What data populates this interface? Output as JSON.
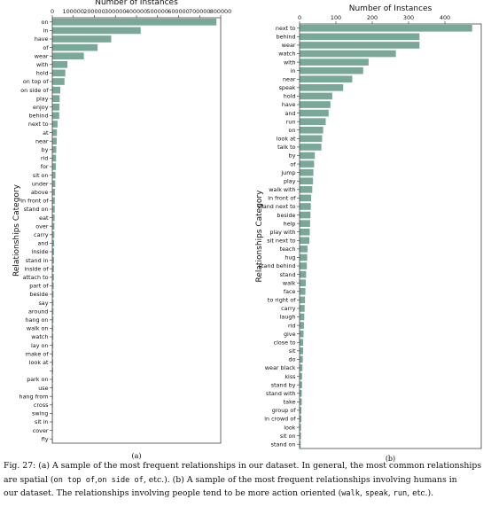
{
  "chart_data": [
    {
      "type": "bar",
      "orientation": "horizontal",
      "title": "",
      "xlabel": "Number of Instances",
      "ylabel": "Relationships Category",
      "xlim": [
        0,
        800000
      ],
      "xticks": [
        0,
        100000,
        200000,
        300000,
        400000,
        500000,
        600000,
        700000,
        800000
      ],
      "xtick_labels": [
        "0",
        "100000",
        "200000",
        "300000",
        "400000",
        "500000",
        "600000",
        "700000",
        "800000"
      ],
      "bar_color": "#7aa898",
      "grid": false,
      "subfigure_label": "(a)",
      "categories": [
        "on",
        "in",
        "have",
        "of",
        "wear",
        "with",
        "hold",
        "on top of",
        "on side of",
        "play",
        "enjoy",
        "behind",
        "next to",
        "at",
        "near",
        "by",
        "rid",
        "for",
        "sit on",
        "under",
        "above",
        "in front of",
        "stand on",
        "eat",
        "over",
        "carry",
        "and",
        "inside",
        "stand in",
        "inside of",
        "attach to",
        "part of",
        "beside",
        "say",
        "around",
        "hang on",
        "walk on",
        "watch",
        "lay on",
        "make of",
        "look at",
        "",
        "park on",
        "use",
        "hang from",
        "cross",
        "swing",
        "sit in",
        "cover",
        "fly"
      ],
      "values": [
        780000,
        420000,
        280000,
        215000,
        150000,
        72000,
        62000,
        58000,
        38000,
        35000,
        34000,
        33000,
        25000,
        22000,
        21000,
        19000,
        18000,
        17000,
        15000,
        14000,
        12500,
        12000,
        11500,
        11000,
        10000,
        9500,
        9000,
        8500,
        8000,
        7800,
        7500,
        7000,
        6500,
        6000,
        5800,
        5500,
        5200,
        5000,
        4800,
        4500,
        4300,
        4000,
        3800,
        3500,
        3300,
        3100,
        2900,
        2700,
        2500,
        2300
      ]
    },
    {
      "type": "bar",
      "orientation": "horizontal",
      "title": "",
      "xlabel": "Number of Instances",
      "ylabel": "Relationships Category",
      "xlim": [
        0,
        500
      ],
      "xticks": [
        0,
        100,
        200,
        300,
        400
      ],
      "xtick_labels": [
        "0",
        "100",
        "200",
        "300",
        "400"
      ],
      "bar_color": "#7aa898",
      "grid": false,
      "subfigure_label": "(b)",
      "categories": [
        "next to",
        "behind",
        "wear",
        "watch",
        "with",
        "in",
        "near",
        "speak",
        "hold",
        "have",
        "and",
        "run",
        "on",
        "look at",
        "talk to",
        "by",
        "of",
        "jump",
        "play",
        "walk with",
        "in front of",
        "stand next to",
        "beside",
        "help",
        "play with",
        "sit next to",
        "teach",
        "hug",
        "stand behind",
        "stand",
        "walk",
        "face",
        "to right of",
        "carry",
        "laugh",
        "rid",
        "give",
        "close to",
        "sit",
        "do",
        "wear black",
        "kiss",
        "stand by",
        "stand with",
        "take",
        "group of",
        "in crowd of",
        "look",
        "sit on",
        "stand on"
      ],
      "values": [
        475,
        330,
        330,
        265,
        190,
        175,
        145,
        120,
        90,
        85,
        80,
        72,
        65,
        62,
        60,
        42,
        40,
        38,
        37,
        35,
        32,
        31,
        30,
        29,
        28,
        27,
        22,
        21,
        20,
        18,
        17,
        16,
        15,
        14,
        13,
        12,
        11,
        10,
        10,
        9,
        8,
        7,
        7,
        6,
        6,
        5,
        5,
        4,
        4,
        3
      ]
    }
  ],
  "caption": {
    "line1": "Fig. 27: (a) A sample of the most frequent relationships in our dataset. In general, the most common relationships",
    "line2_pre": "are spatial (",
    "line2_code1": "on top of",
    "line2_sep": ",",
    "line2_code2": "on side of",
    "line2_mid": ", etc.). (b) A sample of the most frequent relationships involving humans in",
    "line3_pre": "our dataset. The relationships involving people tend to be more action oriented (",
    "line3_code1": "walk",
    "line3_sep1": ", ",
    "line3_code2": "speak",
    "line3_sep2": ", ",
    "line3_code3": "run",
    "line3_post": ", etc.)."
  }
}
